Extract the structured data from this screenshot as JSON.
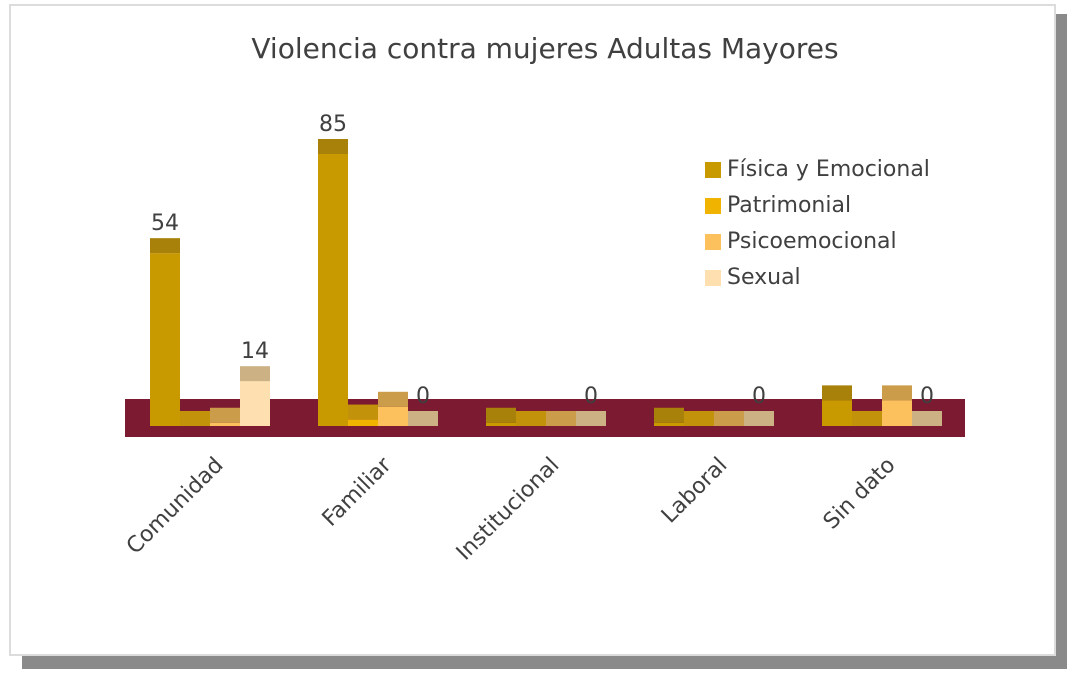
{
  "chart_data": {
    "type": "bar",
    "title": "Violencia contra mujeres Adultas Mayores",
    "categories": [
      "Comunidad",
      "Familiar",
      "Institucional",
      "Laboral",
      "Sin dato"
    ],
    "series": [
      {
        "name": "Física y Emocional",
        "color": "#c99a00",
        "values": [
          54,
          85,
          1,
          1,
          8
        ],
        "value_labels": [
          "54",
          "85",
          null,
          null,
          null
        ]
      },
      {
        "name": "Patrimonial",
        "color": "#f0b400",
        "values": [
          0,
          2,
          0,
          0,
          0
        ]
      },
      {
        "name": "Psicoemocional",
        "color": "#fcc15c",
        "values": [
          1,
          6,
          0,
          0,
          8
        ]
      },
      {
        "name": "Sexual",
        "color": "#fedfb0",
        "values": [
          14,
          0,
          0,
          0,
          0
        ],
        "value_labels": [
          "14",
          "0",
          "0",
          "0",
          "0"
        ]
      }
    ],
    "ylim": [
      0,
      100
    ],
    "legend": "right"
  }
}
